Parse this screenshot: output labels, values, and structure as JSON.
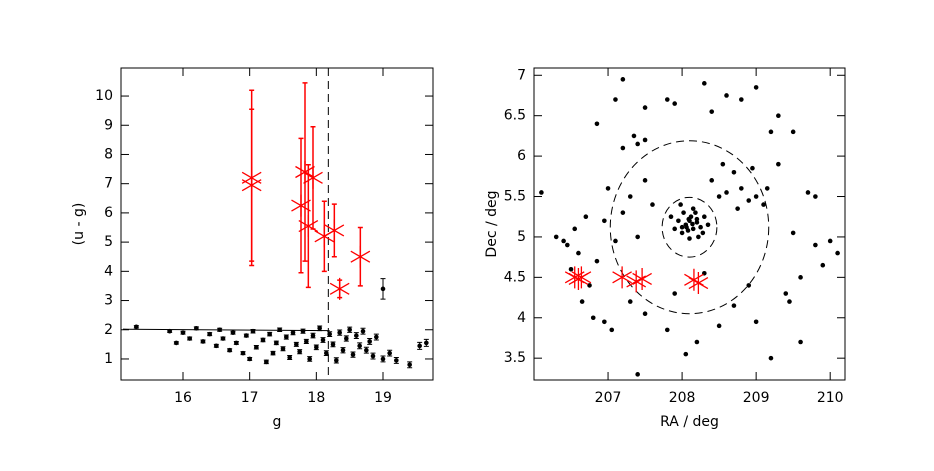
{
  "chart_data": [
    {
      "type": "scatter",
      "x_label": "g",
      "y_label": "(u - g)",
      "xlim": [
        15.07,
        19.75
      ],
      "ylim": [
        0.28,
        10.96
      ],
      "xticks": [
        16,
        17,
        18,
        19
      ],
      "yticks": [
        1,
        2,
        3,
        4,
        5,
        6,
        7,
        8,
        9,
        10
      ],
      "vlines": [
        18.18
      ],
      "line": {
        "x": [
          15.1,
          18.2
        ],
        "y": [
          2.02,
          1.97
        ]
      },
      "series": [
        {
          "color": "#000000",
          "marker": "dot",
          "x": [
            15.3,
            15.8,
            15.9,
            16.0,
            16.1,
            16.2,
            16.3,
            16.4,
            16.5,
            16.55,
            16.6,
            16.7,
            16.75,
            16.8,
            16.9,
            16.95,
            17.0,
            17.05,
            17.1,
            17.2,
            17.25,
            17.3,
            17.35,
            17.4,
            17.45,
            17.5,
            17.55,
            17.6,
            17.65,
            17.7,
            17.75,
            17.8,
            17.85,
            17.9,
            17.95,
            18.0,
            18.05,
            18.1,
            18.15,
            18.2,
            18.25,
            18.3,
            18.35,
            18.4,
            18.45,
            18.5,
            18.55,
            18.6,
            18.65,
            18.7,
            18.75,
            18.8,
            18.85,
            18.9,
            19.0,
            19.1,
            19.2,
            19.4,
            19.55,
            19.65
          ],
          "values": [
            2.1,
            1.95,
            1.55,
            1.9,
            1.7,
            2.05,
            1.6,
            1.85,
            1.45,
            2.0,
            1.7,
            1.3,
            1.9,
            1.55,
            1.2,
            1.8,
            1.0,
            1.95,
            1.4,
            1.65,
            0.9,
            1.85,
            1.2,
            1.55,
            2.0,
            1.35,
            1.75,
            1.05,
            1.9,
            1.5,
            1.25,
            1.95,
            1.6,
            1.0,
            1.8,
            1.4,
            2.05,
            1.65,
            1.2,
            1.85,
            1.5,
            0.95,
            1.9,
            1.3,
            1.7,
            2.0,
            1.15,
            1.8,
            1.45,
            1.95,
            1.3,
            1.6,
            1.1,
            1.75,
            1.0,
            1.2,
            0.95,
            0.8,
            1.45,
            1.55
          ],
          "errors": [
            0.04,
            0.04,
            0.04,
            0.05,
            0.05,
            0.05,
            0.05,
            0.05,
            0.05,
            0.05,
            0.05,
            0.05,
            0.05,
            0.05,
            0.05,
            0.05,
            0.05,
            0.06,
            0.06,
            0.06,
            0.06,
            0.06,
            0.06,
            0.06,
            0.06,
            0.07,
            0.07,
            0.07,
            0.07,
            0.07,
            0.07,
            0.07,
            0.07,
            0.08,
            0.08,
            0.08,
            0.08,
            0.08,
            0.08,
            0.08,
            0.08,
            0.09,
            0.09,
            0.09,
            0.09,
            0.09,
            0.09,
            0.1,
            0.1,
            0.1,
            0.1,
            0.1,
            0.1,
            0.1,
            0.1,
            0.1,
            0.1,
            0.1,
            0.12,
            0.12
          ]
        },
        {
          "color": "#000000",
          "marker": "dot",
          "x": [
            19.0
          ],
          "values": [
            3.4
          ],
          "errors": [
            0.35
          ]
        },
        {
          "color": "#ff0000",
          "marker": "star",
          "x": [
            17.03,
            17.03,
            17.77,
            17.83,
            17.88,
            17.95,
            18.12,
            18.27,
            18.35,
            18.66
          ],
          "values": [
            7.2,
            6.95,
            6.25,
            7.4,
            5.55,
            7.2,
            5.2,
            5.4,
            3.4,
            4.5
          ],
          "errors": [
            3.0,
            2.6,
            2.3,
            3.05,
            2.1,
            1.75,
            1.2,
            0.9,
            0.3,
            1.0
          ]
        }
      ]
    },
    {
      "type": "scatter",
      "x_label": "RA / deg",
      "y_label": "Dec / deg",
      "xlim": [
        206.0,
        210.2
      ],
      "ylim": [
        3.23,
        7.09
      ],
      "xticks": [
        207,
        208,
        209,
        210
      ],
      "yticks": [
        3.5,
        4,
        4.5,
        5,
        5.5,
        6,
        6.5,
        7
      ],
      "circles": [
        {
          "x": 208.1,
          "y": 5.12,
          "r": 1.07
        },
        {
          "x": 208.1,
          "y": 5.12,
          "r": 0.37
        }
      ],
      "series": [
        {
          "color": "#000000",
          "marker": "dot",
          "x": [
            208.05,
            208.1,
            208.15,
            208.0,
            208.2,
            208.12,
            207.95,
            208.18,
            208.25,
            208.08,
            208.02,
            208.22,
            207.9,
            208.3,
            208.1,
            208.15,
            207.98,
            208.28,
            208.06,
            208.14,
            208.09,
            208.2,
            208.0,
            208.35,
            207.85,
            208.5,
            208.6,
            208.8,
            208.9,
            209.0,
            208.7,
            208.4,
            208.55,
            209.1,
            208.95,
            209.15,
            208.75,
            207.0,
            207.2,
            207.4,
            207.3,
            206.95,
            207.1,
            207.5,
            207.6,
            207.2,
            207.4,
            207.35,
            207.5,
            207.5,
            207.8,
            207.9,
            208.4,
            208.6,
            208.8,
            209.0,
            208.3,
            207.2,
            207.1,
            209.3,
            209.5,
            209.2,
            206.85,
            206.1,
            206.3,
            206.45,
            206.6,
            206.5,
            206.75,
            206.65,
            206.8,
            206.95,
            207.05,
            206.7,
            206.55,
            206.4,
            206.85,
            207.3,
            207.5,
            207.8,
            208.05,
            208.2,
            208.5,
            208.7,
            209.0,
            209.2,
            207.9,
            208.3,
            207.4,
            208.9,
            209.4,
            209.6,
            209.8,
            210.0,
            210.1,
            209.9,
            209.5,
            209.7,
            209.8,
            209.3,
            209.45,
            209.6
          ],
          "values": [
            5.15,
            5.2,
            5.1,
            5.05,
            5.18,
            5.25,
            5.2,
            5.3,
            5.12,
            5.08,
            5.3,
            5.0,
            5.1,
            5.25,
            4.98,
            5.35,
            5.4,
            5.05,
            5.12,
            5.16,
            5.22,
            5.22,
            5.12,
            5.15,
            5.25,
            5.5,
            5.55,
            5.6,
            5.45,
            5.5,
            5.8,
            5.7,
            5.9,
            5.4,
            5.85,
            5.6,
            5.35,
            5.6,
            5.3,
            5.0,
            5.5,
            5.2,
            4.95,
            5.7,
            5.4,
            6.1,
            6.15,
            6.25,
            6.2,
            6.6,
            6.7,
            6.65,
            6.55,
            6.75,
            6.7,
            6.85,
            6.9,
            6.95,
            6.7,
            6.5,
            6.3,
            6.3,
            6.4,
            5.55,
            5.0,
            4.9,
            4.8,
            4.6,
            4.4,
            4.2,
            4.0,
            3.95,
            3.85,
            5.25,
            5.1,
            4.95,
            4.7,
            4.2,
            4.05,
            3.85,
            3.55,
            3.7,
            3.9,
            4.15,
            3.95,
            3.5,
            4.3,
            4.55,
            3.3,
            4.4,
            4.3,
            4.5,
            4.9,
            4.95,
            4.8,
            4.65,
            5.05,
            5.55,
            5.5,
            5.9,
            4.2,
            3.7
          ]
        },
        {
          "color": "#ff0000",
          "marker": "star",
          "x": [
            206.55,
            206.6,
            206.64,
            207.19,
            207.38,
            207.46,
            208.16,
            208.22
          ],
          "values": [
            4.5,
            4.48,
            4.5,
            4.5,
            4.45,
            4.48,
            4.47,
            4.43
          ]
        }
      ]
    }
  ]
}
